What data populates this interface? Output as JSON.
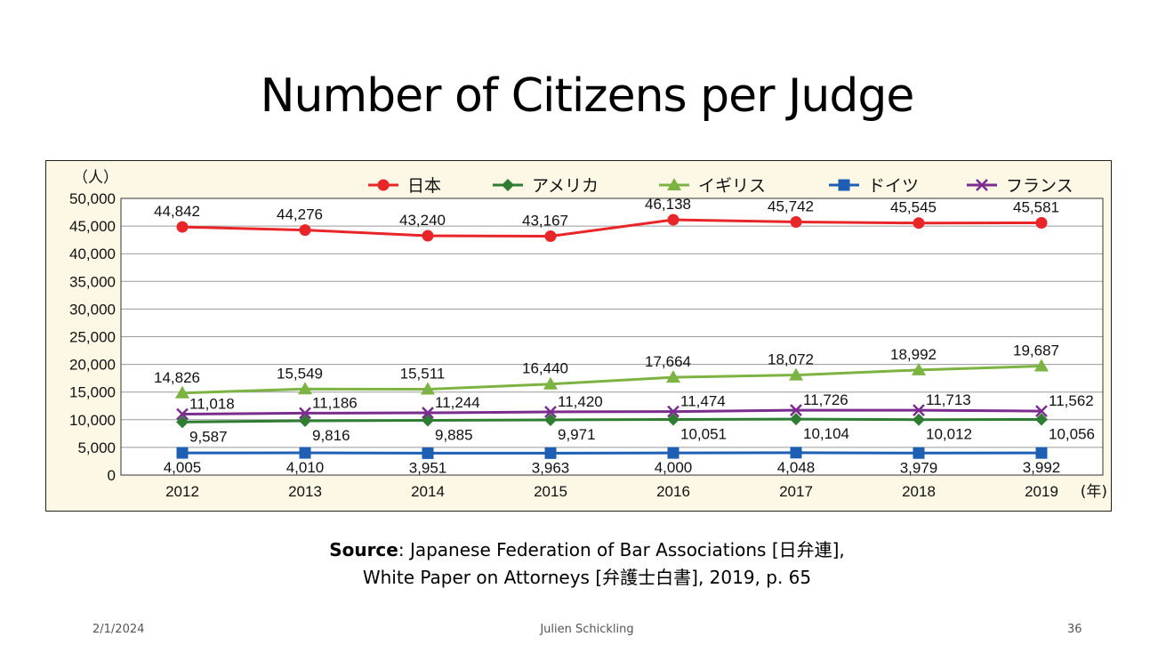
{
  "slide": {
    "title": "Number of Citizens per Judge",
    "source_bold": "Source",
    "source_line1": ": Japanese Federation of Bar Associations [日弁連],",
    "source_line2": "White Paper on Attorneys [弁護士白書], 2019, p. 65",
    "footer_date": "2/1/2024",
    "footer_author": "Julien Schickling",
    "footer_page": "36"
  },
  "chart_data": {
    "type": "line",
    "y_unit_label": "（人）",
    "x_unit_label": "(年)",
    "x": [
      "2012",
      "2013",
      "2014",
      "2015",
      "2016",
      "2017",
      "2018",
      "2019"
    ],
    "ylim": [
      0,
      50000
    ],
    "yticks": [
      0,
      5000,
      10000,
      15000,
      20000,
      25000,
      30000,
      35000,
      40000,
      45000,
      50000
    ],
    "ytick_labels": [
      "0",
      "5,000",
      "10,000",
      "15,000",
      "20,000",
      "25,000",
      "30,000",
      "35,000",
      "40,000",
      "45,000",
      "50,000"
    ],
    "grid": true,
    "legend_position": "top",
    "series": [
      {
        "name": "日本",
        "marker": "circle",
        "color": "#e8262a",
        "values": [
          44842,
          44276,
          43240,
          43167,
          46138,
          45742,
          45545,
          45581
        ],
        "labels": [
          "44,842",
          "44,276",
          "43,240",
          "43,167",
          "46,138",
          "45,742",
          "45,545",
          "45,581"
        ]
      },
      {
        "name": "アメリカ",
        "marker": "diamond",
        "color": "#2e7d32",
        "values": [
          9587,
          9816,
          9885,
          9971,
          10051,
          10104,
          10012,
          10056
        ],
        "labels": [
          "9,587",
          "9,816",
          "9,885",
          "9,971",
          "10,051",
          "10,104",
          "10,012",
          "10,056"
        ]
      },
      {
        "name": "イギリス",
        "marker": "triangle",
        "color": "#7cb342",
        "values": [
          14826,
          15549,
          15511,
          16440,
          17664,
          18072,
          18992,
          19687
        ],
        "labels": [
          "14,826",
          "15,549",
          "15,511",
          "16,440",
          "17,664",
          "18,072",
          "18,992",
          "19,687"
        ]
      },
      {
        "name": "ドイツ",
        "marker": "square",
        "color": "#1e5fb4",
        "values": [
          4005,
          4010,
          3951,
          3963,
          4000,
          4048,
          3979,
          3992
        ],
        "labels": [
          "4,005",
          "4,010",
          "3,951",
          "3,963",
          "4,000",
          "4,048",
          "3,979",
          "3,992"
        ]
      },
      {
        "name": "フランス",
        "marker": "cross",
        "color": "#7b2d8e",
        "values": [
          11018,
          11186,
          11244,
          11420,
          11474,
          11726,
          11713,
          11562
        ],
        "labels": [
          "11,018",
          "11,186",
          "11,244",
          "11,420",
          "11,474",
          "11,726",
          "11,713",
          "11,562"
        ]
      }
    ]
  }
}
